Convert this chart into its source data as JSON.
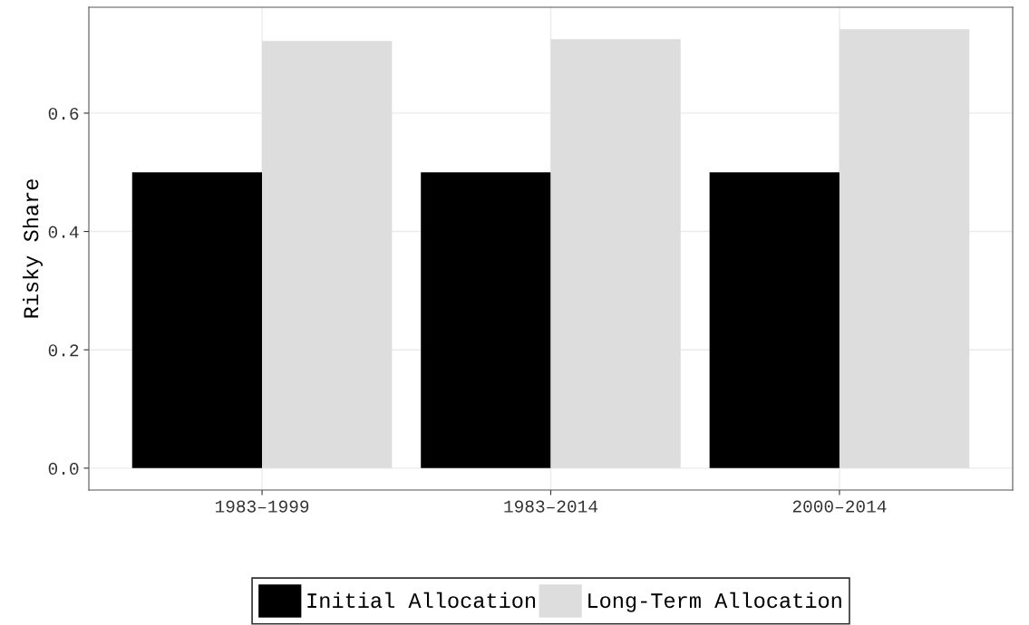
{
  "chart_data": {
    "type": "bar",
    "ylabel": "Risky Share",
    "categories": [
      "1983–1999",
      "1983–2014",
      "2000–2014"
    ],
    "series": [
      {
        "name": "Initial Allocation",
        "color": "#000000",
        "values": [
          0.5,
          0.5,
          0.5
        ]
      },
      {
        "name": "Long-Term Allocation",
        "color": "#dddddd",
        "values": [
          0.722,
          0.725,
          0.742
        ]
      }
    ],
    "ylim": [
      -0.037,
      0.779
    ],
    "yticks": [
      {
        "value": 0,
        "label": "0.0"
      },
      {
        "value": 0.2,
        "label": "0.2"
      },
      {
        "value": 0.4,
        "label": "0.4"
      },
      {
        "value": 0.6,
        "label": "0.6"
      }
    ],
    "grid": true,
    "legend": "bottom"
  }
}
